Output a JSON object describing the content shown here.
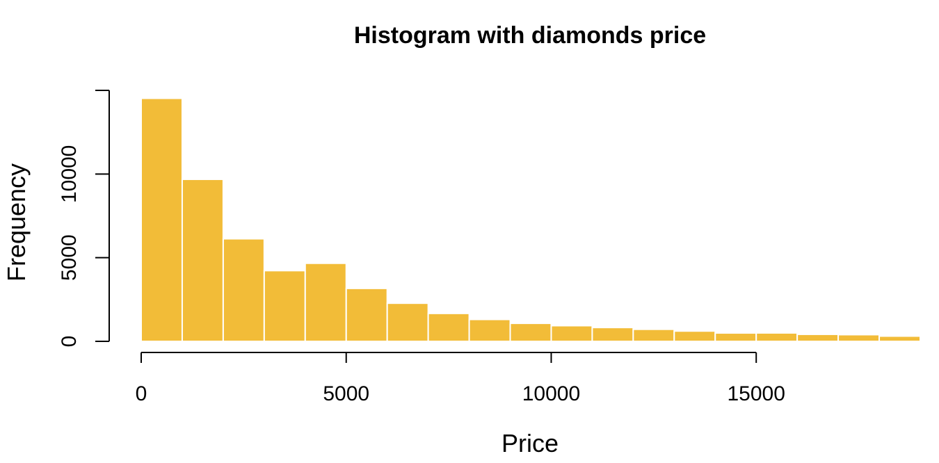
{
  "chart_data": {
    "type": "bar",
    "title": "Histogram with diamonds price",
    "xlabel": "Price",
    "ylabel": "Frequency",
    "bar_color": "#F2BC38",
    "bar_border_color": "#FFFFFF",
    "bin_width": 1000,
    "bins": [
      {
        "start": 0,
        "end": 1000,
        "count": 14524
      },
      {
        "start": 1000,
        "end": 2000,
        "count": 9683
      },
      {
        "start": 2000,
        "end": 3000,
        "count": 6129
      },
      {
        "start": 3000,
        "end": 4000,
        "count": 4225
      },
      {
        "start": 4000,
        "end": 5000,
        "count": 4665
      },
      {
        "start": 5000,
        "end": 6000,
        "count": 3163
      },
      {
        "start": 6000,
        "end": 7000,
        "count": 2278
      },
      {
        "start": 7000,
        "end": 8000,
        "count": 1668
      },
      {
        "start": 8000,
        "end": 9000,
        "count": 1307
      },
      {
        "start": 9000,
        "end": 10000,
        "count": 1076
      },
      {
        "start": 10000,
        "end": 11000,
        "count": 935
      },
      {
        "start": 11000,
        "end": 12000,
        "count": 825
      },
      {
        "start": 12000,
        "end": 13000,
        "count": 719
      },
      {
        "start": 13000,
        "end": 14000,
        "count": 614
      },
      {
        "start": 14000,
        "end": 15000,
        "count": 497
      },
      {
        "start": 15000,
        "end": 16000,
        "count": 501
      },
      {
        "start": 16000,
        "end": 17000,
        "count": 418
      },
      {
        "start": 17000,
        "end": 18000,
        "count": 397
      },
      {
        "start": 18000,
        "end": 19000,
        "count": 312
      }
    ],
    "xlim": [
      0,
      19000
    ],
    "ylim": [
      0,
      15000
    ],
    "x_ticks": [
      0,
      5000,
      10000,
      15000
    ],
    "x_tick_labels": [
      "0",
      "5000",
      "10000",
      "15000"
    ],
    "y_ticks": [
      0,
      5000,
      10000
    ],
    "y_tick_labels": [
      "0",
      "5000",
      "10000"
    ],
    "grid": false,
    "legend": "none"
  }
}
